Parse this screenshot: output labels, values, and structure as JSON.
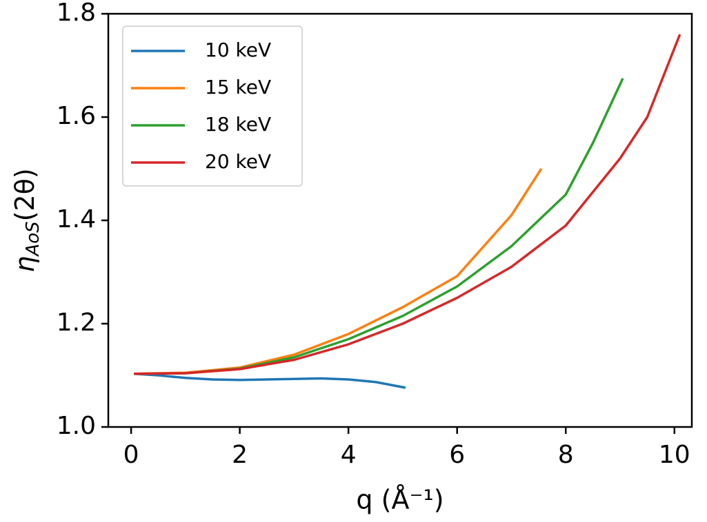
{
  "chart_data": {
    "type": "line",
    "x_label": "q (Å⁻¹)",
    "y_label": {
      "main": "η",
      "sub": "AoS",
      "rest": "(2θ)"
    },
    "xlim": [
      -0.42,
      10.32
    ],
    "ylim": [
      1.0,
      1.8
    ],
    "xticks": [
      0,
      2,
      4,
      6,
      8,
      10
    ],
    "yticks": [
      {
        "value": 1.0,
        "label": "1.0"
      },
      {
        "value": 1.2,
        "label": "1.2"
      },
      {
        "value": 1.4,
        "label": "1.4"
      },
      {
        "value": 1.6,
        "label": "1.6"
      },
      {
        "value": 1.8,
        "label": "1.8"
      }
    ],
    "legend": "upper-left",
    "series": [
      {
        "name": "10 keV",
        "color": "#1f77b4",
        "x": [
          0.05,
          0.5,
          1,
          1.5,
          2,
          2.5,
          3,
          3.5,
          4,
          4.5,
          5.05
        ],
        "values": [
          1.103,
          1.1,
          1.095,
          1.092,
          1.091,
          1.092,
          1.093,
          1.094,
          1.092,
          1.087,
          1.076
        ]
      },
      {
        "name": "15 keV",
        "color": "#ff7f0e",
        "x": [
          0.05,
          1,
          2,
          3,
          4,
          5,
          6,
          7,
          7.55
        ],
        "values": [
          1.103,
          1.105,
          1.115,
          1.14,
          1.18,
          1.232,
          1.292,
          1.41,
          1.5
        ]
      },
      {
        "name": "18 keV",
        "color": "#2ca02c",
        "x": [
          0.05,
          1,
          2,
          3,
          4,
          5,
          6,
          7,
          8,
          8.5,
          9.05
        ],
        "values": [
          1.103,
          1.104,
          1.113,
          1.135,
          1.17,
          1.215,
          1.272,
          1.35,
          1.45,
          1.55,
          1.675
        ]
      },
      {
        "name": "20 keV",
        "color": "#d62728",
        "x": [
          0.05,
          1,
          2,
          3,
          4,
          5,
          6,
          7,
          8,
          9,
          9.5,
          10.1
        ],
        "values": [
          1.103,
          1.104,
          1.112,
          1.13,
          1.16,
          1.2,
          1.25,
          1.31,
          1.39,
          1.52,
          1.6,
          1.76
        ]
      }
    ]
  }
}
